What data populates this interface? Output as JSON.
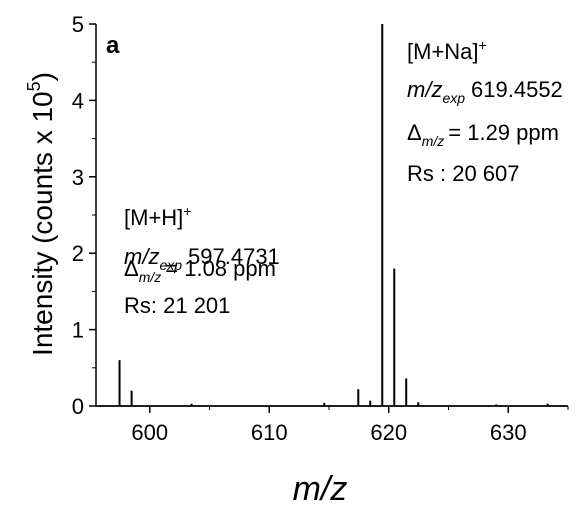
{
  "chart_data": {
    "type": "line",
    "panel_label": "a",
    "xlabel": "m/z",
    "ylabel_main": "Intensity (counts x 10",
    "ylabel_exp": "5",
    "ylabel_close": ")",
    "xlim": [
      595.5,
      635
    ],
    "ylim": [
      0,
      5
    ],
    "xticks": [
      600,
      610,
      620,
      630
    ],
    "yticks": [
      0,
      1,
      2,
      3,
      4,
      5
    ],
    "grid": false,
    "peaks": [
      {
        "x": 597.47,
        "y": 0.6
      },
      {
        "x": 598.48,
        "y": 0.2
      },
      {
        "x": 603.5,
        "y": 0.03
      },
      {
        "x": 614.6,
        "y": 0.04
      },
      {
        "x": 617.45,
        "y": 0.22
      },
      {
        "x": 618.45,
        "y": 0.07
      },
      {
        "x": 619.455,
        "y": 5.0
      },
      {
        "x": 620.46,
        "y": 1.8
      },
      {
        "x": 621.46,
        "y": 0.36
      },
      {
        "x": 622.47,
        "y": 0.05
      },
      {
        "x": 629.0,
        "y": 0.02
      },
      {
        "x": 633.3,
        "y": 0.03
      }
    ],
    "annotations": {
      "mh": {
        "ion_main": "[M+H]",
        "ion_sup": "+",
        "mz_main": "m/z",
        "mz_sub": "exp",
        "mz_value": "597.4731",
        "delta_sym": "Δ",
        "delta_sub": "m/z",
        "delta_value": "= 1.08 ppm",
        "rs": "Rs: 21 201"
      },
      "mna": {
        "ion_main": "[M+Na]",
        "ion_sup": "+",
        "mz_main": "m/z",
        "mz_sub": "exp",
        "mz_value": "619.4552",
        "delta_sym": "Δ",
        "delta_sub": "m/z",
        "delta_value": "= 1.29 ppm",
        "rs": "Rs : 20 607"
      }
    }
  }
}
